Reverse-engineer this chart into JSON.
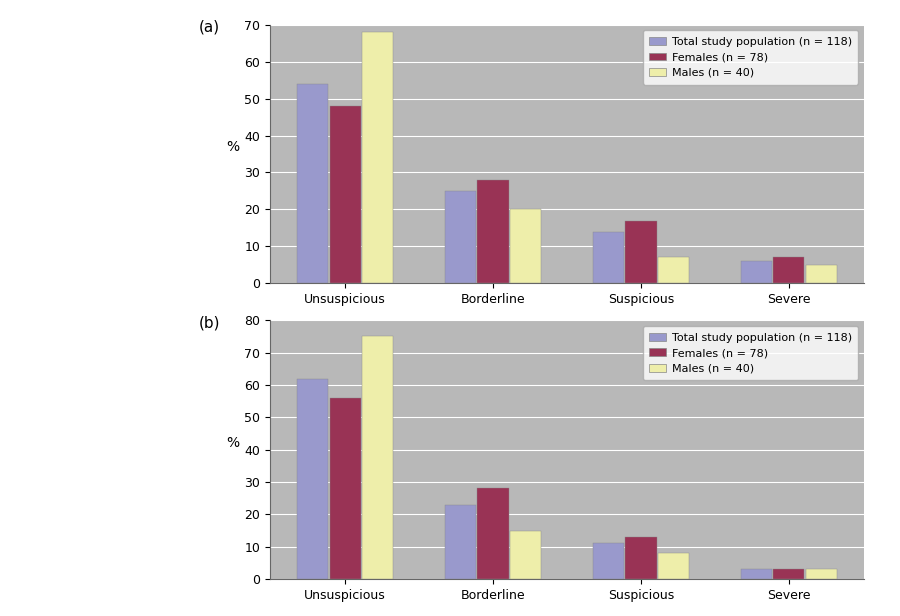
{
  "chart_a": {
    "label": "(a)",
    "categories": [
      "Unsuspicious",
      "Borderline",
      "Suspicious",
      "Severe"
    ],
    "series": {
      "Total study population (n = 118)": [
        54,
        25,
        14,
        6
      ],
      "Females (n = 78)": [
        48,
        28,
        17,
        7
      ],
      "Males (n = 40)": [
        68,
        20,
        7,
        5
      ]
    },
    "ylim": [
      0,
      70
    ],
    "yticks": [
      0,
      10,
      20,
      30,
      40,
      50,
      60,
      70
    ]
  },
  "chart_b": {
    "label": "(b)",
    "categories": [
      "Unsuspicious",
      "Borderline",
      "Suspicious",
      "Severe"
    ],
    "series": {
      "Total study population (n = 118)": [
        62,
        23,
        11,
        3
      ],
      "Females (n = 78)": [
        56,
        28,
        13,
        3
      ],
      "Males (n = 40)": [
        75,
        15,
        8,
        3
      ]
    },
    "ylim": [
      0,
      80
    ],
    "yticks": [
      0,
      10,
      20,
      30,
      40,
      50,
      60,
      70,
      80
    ]
  },
  "colors": {
    "Total study population (n = 118)": "#9999cc",
    "Females (n = 78)": "#993355",
    "Males (n = 40)": "#eeeeaa"
  },
  "ylabel": "%",
  "bg_color": "#b8b8b8",
  "bar_width": 0.22,
  "legend_order": [
    "Total study population (n = 118)",
    "Females (n = 78)",
    "Males (n = 40)"
  ],
  "fig_width": 9.0,
  "fig_height": 6.16
}
